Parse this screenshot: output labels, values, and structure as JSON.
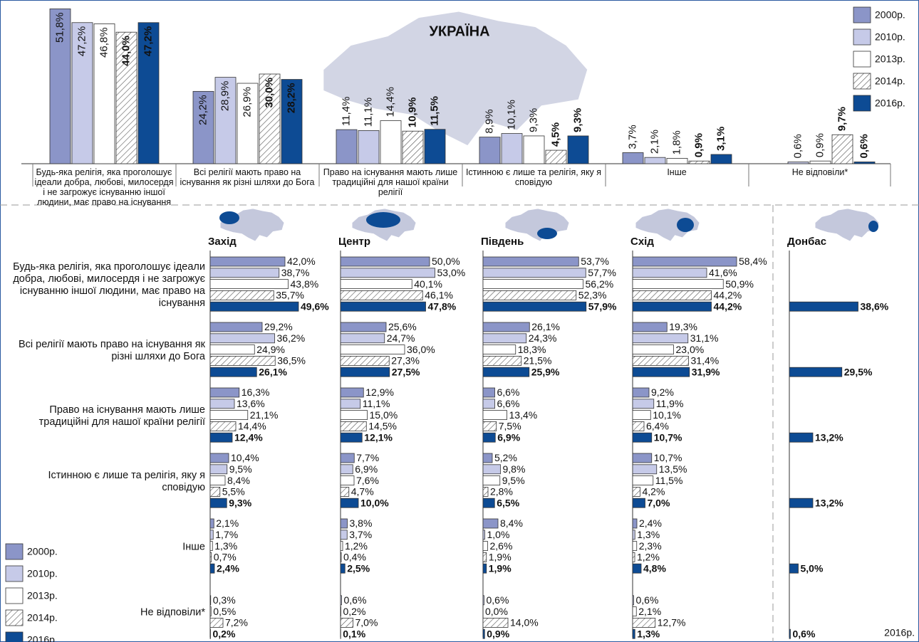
{
  "chart_data": [
    {
      "type": "bar",
      "orientation": "vertical",
      "title": "УКРАЇНА",
      "legend": "top-right",
      "categories": [
        "Будь-яка релігія, яка проголошує ідеали добра, любові, милосердя і не загрожує існуванню іншої людини, має право на існування",
        "Всі релігії мають право на існування як різні шляхи до Бога",
        "Право на існування мають лише традиційні для нашої країни релігії",
        "Істинною є лише та релігія, яку я сповідую",
        "Інше",
        "Не відповіли*"
      ],
      "series": [
        {
          "name": "2000р.",
          "color": "#8b95c8",
          "values": [
            51.8,
            24.2,
            11.4,
            8.9,
            3.7,
            null
          ],
          "value_labels": [
            "51,8%",
            "24,2%",
            "11,4%",
            "8,9%",
            "3,7%",
            null
          ]
        },
        {
          "name": "2010р.",
          "color": "#c6cae8",
          "values": [
            47.2,
            28.9,
            11.1,
            10.1,
            2.1,
            0.6
          ],
          "value_labels": [
            "47,2%",
            "28,9%",
            "11,1%",
            "10,1%",
            "2,1%",
            "0,6%"
          ]
        },
        {
          "name": "2013р.",
          "color": "#ffffff",
          "values": [
            46.8,
            26.9,
            14.4,
            9.3,
            1.8,
            0.9
          ],
          "value_labels": [
            "46,8%",
            "26,9%",
            "14,4%",
            "9,3%",
            "1,8%",
            "0,9%"
          ]
        },
        {
          "name": "2014р.",
          "color": "#ffffff",
          "hatch": true,
          "values": [
            44.0,
            30.0,
            10.9,
            4.5,
            0.9,
            9.7
          ],
          "value_labels": [
            "44,0%",
            "30,0%",
            "10,9%",
            "4,5%",
            "0,9%",
            "9,7%"
          ]
        },
        {
          "name": "2016р.",
          "color": "#0d4b94",
          "values": [
            47.2,
            28.2,
            11.5,
            9.3,
            3.1,
            0.6
          ],
          "value_labels": [
            "47,2%",
            "28,2%",
            "11,5%",
            "9,3%",
            "3,1%",
            "0,6%"
          ]
        }
      ]
    },
    {
      "type": "bar",
      "orientation": "horizontal",
      "legend": "bottom-left",
      "categories": [
        "Будь-яка релігія, яка проголошує ідеали добра, любові, милосердя і не загрожує існуванню іншої людини, має право на існування",
        "Всі релігії мають право на існування як різні шляхи до Бога",
        "Право на існування мають лише традиційні для нашої країни релігії",
        "Істинною є лише та релігія, яку я сповідую",
        "Інше",
        "Не відповіли*"
      ],
      "series": [
        {
          "name": "2000р.",
          "color": "#8b95c8"
        },
        {
          "name": "2010р.",
          "color": "#c6cae8"
        },
        {
          "name": "2013р.",
          "color": "#ffffff"
        },
        {
          "name": "2014р.",
          "color": "#ffffff",
          "hatch": true
        },
        {
          "name": "2016р.",
          "color": "#0d4b94"
        }
      ],
      "panels": [
        {
          "title": "Захід",
          "series": [
            {
              "values": [
                42.0,
                29.2,
                16.3,
                10.4,
                2.1,
                null
              ],
              "value_labels": [
                "42,0%",
                "29,2%",
                "16,3%",
                "10,4%",
                "2,1%",
                null
              ]
            },
            {
              "values": [
                38.7,
                36.2,
                13.6,
                9.5,
                1.7,
                0.3
              ],
              "value_labels": [
                "38,7%",
                "36,2%",
                "13,6%",
                "9,5%",
                "1,7%",
                "0,3%"
              ]
            },
            {
              "values": [
                43.8,
                24.9,
                21.1,
                8.4,
                1.3,
                0.5
              ],
              "value_labels": [
                "43,8%",
                "24,9%",
                "21,1%",
                "8,4%",
                "1,3%",
                "0,5%"
              ]
            },
            {
              "values": [
                35.7,
                36.5,
                14.4,
                5.5,
                0.7,
                7.2
              ],
              "value_labels": [
                "35,7%",
                "36,5%",
                "14,4%",
                "5,5%",
                "0,7%",
                "7,2%"
              ]
            },
            {
              "values": [
                49.6,
                26.1,
                12.4,
                9.3,
                2.4,
                0.2
              ],
              "value_labels": [
                "49,6%",
                "26,1%",
                "12,4%",
                "9,3%",
                "2,4%",
                "0,2%"
              ]
            }
          ]
        },
        {
          "title": "Центр",
          "series": [
            {
              "values": [
                50.0,
                25.6,
                12.9,
                7.7,
                3.8,
                null
              ],
              "value_labels": [
                "50,0%",
                "25,6%",
                "12,9%",
                "7,7%",
                "3,8%",
                null
              ]
            },
            {
              "values": [
                53.0,
                24.7,
                11.1,
                6.9,
                3.7,
                0.6
              ],
              "value_labels": [
                "53,0%",
                "24,7%",
                "11,1%",
                "6,9%",
                "3,7%",
                "0,6%"
              ]
            },
            {
              "values": [
                40.1,
                36.0,
                15.0,
                7.6,
                1.2,
                0.2
              ],
              "value_labels": [
                "40,1%",
                "36,0%",
                "15,0%",
                "7,6%",
                "1,2%",
                "0,2%"
              ]
            },
            {
              "values": [
                46.1,
                27.3,
                14.5,
                4.7,
                0.4,
                7.0
              ],
              "value_labels": [
                "46,1%",
                "27,3%",
                "14,5%",
                "4,7%",
                "0,4%",
                "7,0%"
              ]
            },
            {
              "values": [
                47.8,
                27.5,
                12.1,
                10.0,
                2.5,
                0.1
              ],
              "value_labels": [
                "47,8%",
                "27,5%",
                "12,1%",
                "10,0%",
                "2,5%",
                "0,1%"
              ]
            }
          ]
        },
        {
          "title": "Південь",
          "series": [
            {
              "values": [
                53.7,
                26.1,
                6.6,
                5.2,
                8.4,
                null
              ],
              "value_labels": [
                "53,7%",
                "26,1%",
                "6,6%",
                "5,2%",
                "8,4%",
                null
              ]
            },
            {
              "values": [
                57.7,
                24.3,
                6.6,
                9.8,
                1.0,
                0.6
              ],
              "value_labels": [
                "57,7%",
                "24,3%",
                "6,6%",
                "9,8%",
                "1,0%",
                "0,6%"
              ]
            },
            {
              "values": [
                56.2,
                18.3,
                13.4,
                9.5,
                2.6,
                0.0
              ],
              "value_labels": [
                "56,2%",
                "18,3%",
                "13,4%",
                "9,5%",
                "2,6%",
                "0,0%"
              ]
            },
            {
              "values": [
                52.3,
                21.5,
                7.5,
                2.8,
                1.9,
                14.0
              ],
              "value_labels": [
                "52,3%",
                "21,5%",
                "7,5%",
                "2,8%",
                "1,9%",
                "14,0%"
              ]
            },
            {
              "values": [
                57.9,
                25.9,
                6.9,
                6.5,
                1.9,
                0.9
              ],
              "value_labels": [
                "57,9%",
                "25,9%",
                "6,9%",
                "6,5%",
                "1,9%",
                "0,9%"
              ]
            }
          ]
        },
        {
          "title": "Схід",
          "series": [
            {
              "values": [
                58.4,
                19.3,
                9.2,
                10.7,
                2.4,
                null
              ],
              "value_labels": [
                "58,4%",
                "19,3%",
                "9,2%",
                "10,7%",
                "2,4%",
                null
              ]
            },
            {
              "values": [
                41.6,
                31.1,
                11.9,
                13.5,
                1.3,
                0.6
              ],
              "value_labels": [
                "41,6%",
                "31,1%",
                "11,9%",
                "13,5%",
                "1,3%",
                "0,6%"
              ]
            },
            {
              "values": [
                50.9,
                23.0,
                10.1,
                11.5,
                2.3,
                2.1
              ],
              "value_labels": [
                "50,9%",
                "23,0%",
                "10,1%",
                "11,5%",
                "2,3%",
                "2,1%"
              ]
            },
            {
              "values": [
                44.2,
                31.4,
                6.4,
                4.2,
                1.2,
                12.7
              ],
              "value_labels": [
                "44,2%",
                "31,4%",
                "6,4%",
                "4,2%",
                "1,2%",
                "12,7%"
              ]
            },
            {
              "values": [
                44.2,
                31.9,
                10.7,
                7.0,
                4.8,
                1.3
              ],
              "value_labels": [
                "44,2%",
                "31,9%",
                "10,7%",
                "7,0%",
                "4,8%",
                "1,3%"
              ]
            }
          ]
        },
        {
          "title": "Донбас",
          "series": [
            {
              "name": "2016р.",
              "color": "#0d4b94",
              "values": [
                38.6,
                29.5,
                13.2,
                13.2,
                5.0,
                0.6
              ],
              "value_labels": [
                "38,6%",
                "29,5%",
                "13,2%",
                "13,2%",
                "5,0%",
                "0,6%"
              ]
            }
          ]
        }
      ]
    }
  ]
}
